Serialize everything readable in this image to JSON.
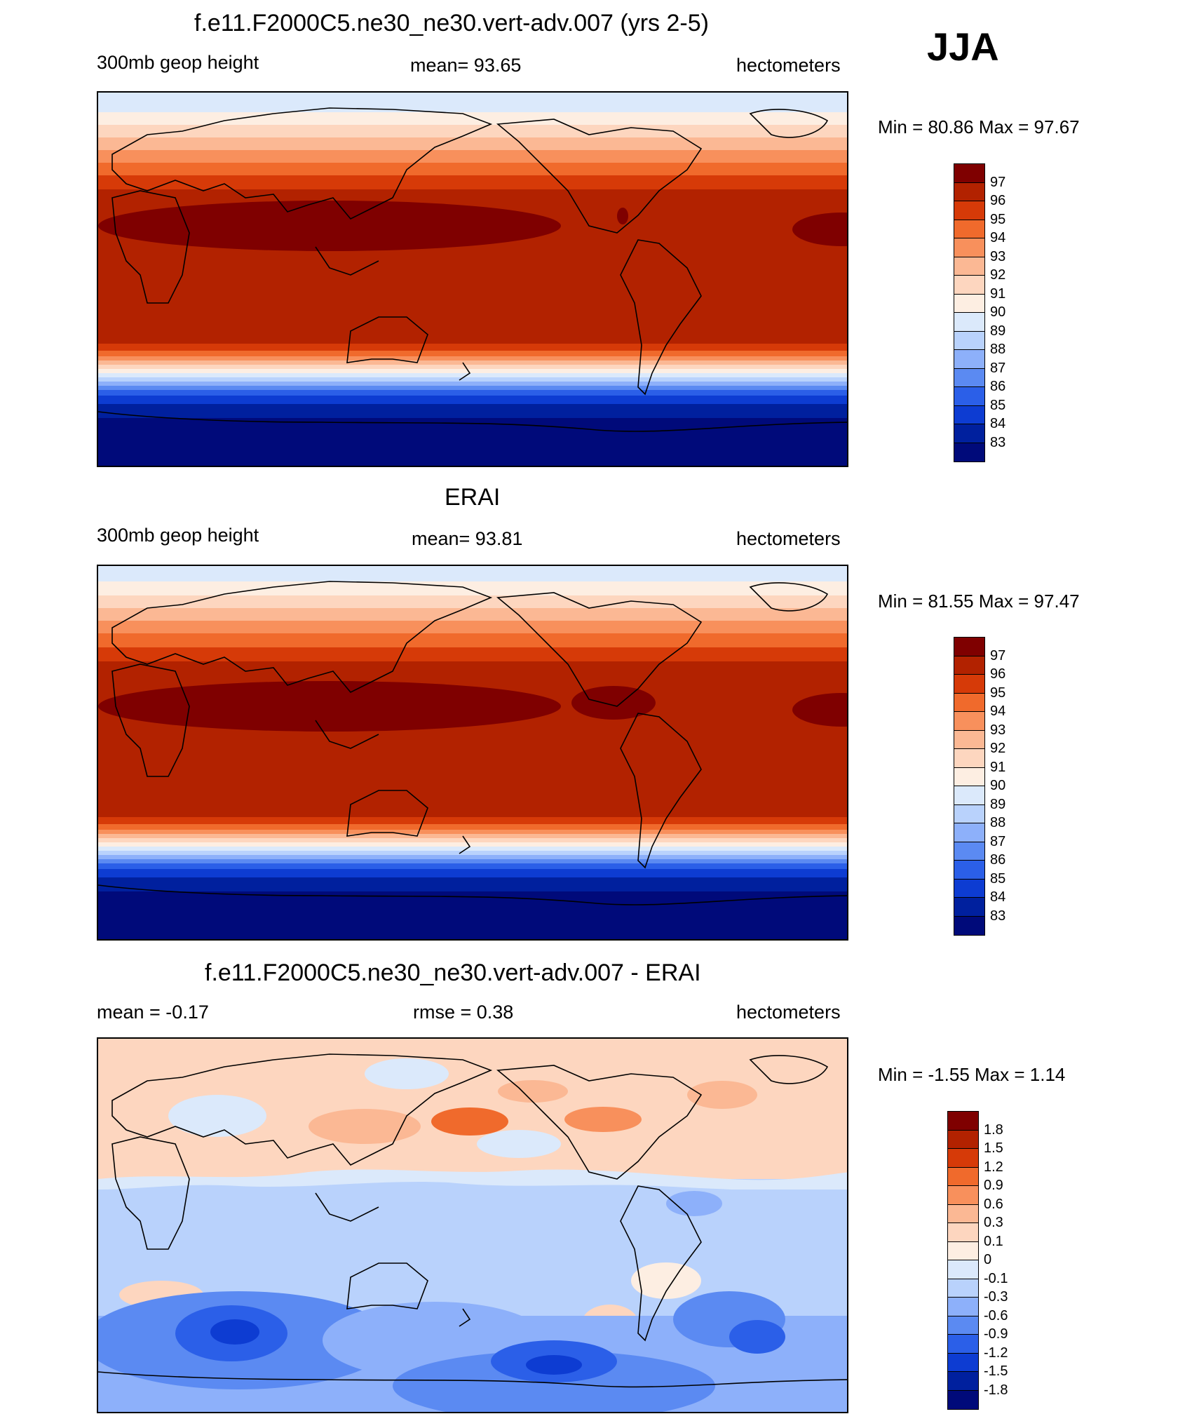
{
  "season": "JJA",
  "panels": [
    {
      "title": "f.e11.F2000C5.ne30_ne30.vert-adv.007 (yrs 2-5)",
      "left_label": "300mb geop height",
      "center_label": "mean=  93.65",
      "right_label": "hectometers",
      "minmax": "Min =  80.86 Max =  97.67",
      "colorbar": {
        "labels": [
          "97",
          "96",
          "95",
          "94",
          "93",
          "92",
          "91",
          "90",
          "89",
          "88",
          "87",
          "86",
          "85",
          "84",
          "83"
        ],
        "colors": [
          "#7f0000",
          "#b22200",
          "#d63a08",
          "#f06a2c",
          "#f8905c",
          "#fbb894",
          "#fdd6bf",
          "#fdeee2",
          "#dbe9fb",
          "#b9d2fc",
          "#8db0fa",
          "#5b8af2",
          "#2b5fe8",
          "#0d3cd2",
          "#00209e",
          "#000a7a"
        ]
      }
    },
    {
      "title": "ERAI",
      "left_label": "300mb geop height",
      "center_label": "mean=  93.81",
      "right_label": "hectometers",
      "minmax": "Min =  81.55 Max =  97.47",
      "colorbar": {
        "labels": [
          "97",
          "96",
          "95",
          "94",
          "93",
          "92",
          "91",
          "90",
          "89",
          "88",
          "87",
          "86",
          "85",
          "84",
          "83"
        ],
        "colors": [
          "#7f0000",
          "#b22200",
          "#d63a08",
          "#f06a2c",
          "#f8905c",
          "#fbb894",
          "#fdd6bf",
          "#fdeee2",
          "#dbe9fb",
          "#b9d2fc",
          "#8db0fa",
          "#5b8af2",
          "#2b5fe8",
          "#0d3cd2",
          "#00209e",
          "#000a7a"
        ]
      }
    },
    {
      "title": "f.e11.F2000C5.ne30_ne30.vert-adv.007 - ERAI",
      "left_label": "mean =  -0.17",
      "center_label": "rmse =   0.38",
      "right_label": "hectometers",
      "minmax": "Min =  -1.55 Max =   1.14",
      "colorbar": {
        "labels": [
          "1.8",
          "1.5",
          "1.2",
          "0.9",
          "0.6",
          "0.3",
          "0.1",
          "0",
          "-0.1",
          "-0.3",
          "-0.6",
          "-0.9",
          "-1.2",
          "-1.5",
          "-1.8"
        ],
        "colors": [
          "#7f0000",
          "#b22200",
          "#d63a08",
          "#f06a2c",
          "#f8905c",
          "#fbb894",
          "#fdd6bf",
          "#fdeee2",
          "#dbe9fb",
          "#b9d2fc",
          "#8db0fa",
          "#5b8af2",
          "#2b5fe8",
          "#0d3cd2",
          "#00209e",
          "#000a7a"
        ]
      }
    }
  ]
}
